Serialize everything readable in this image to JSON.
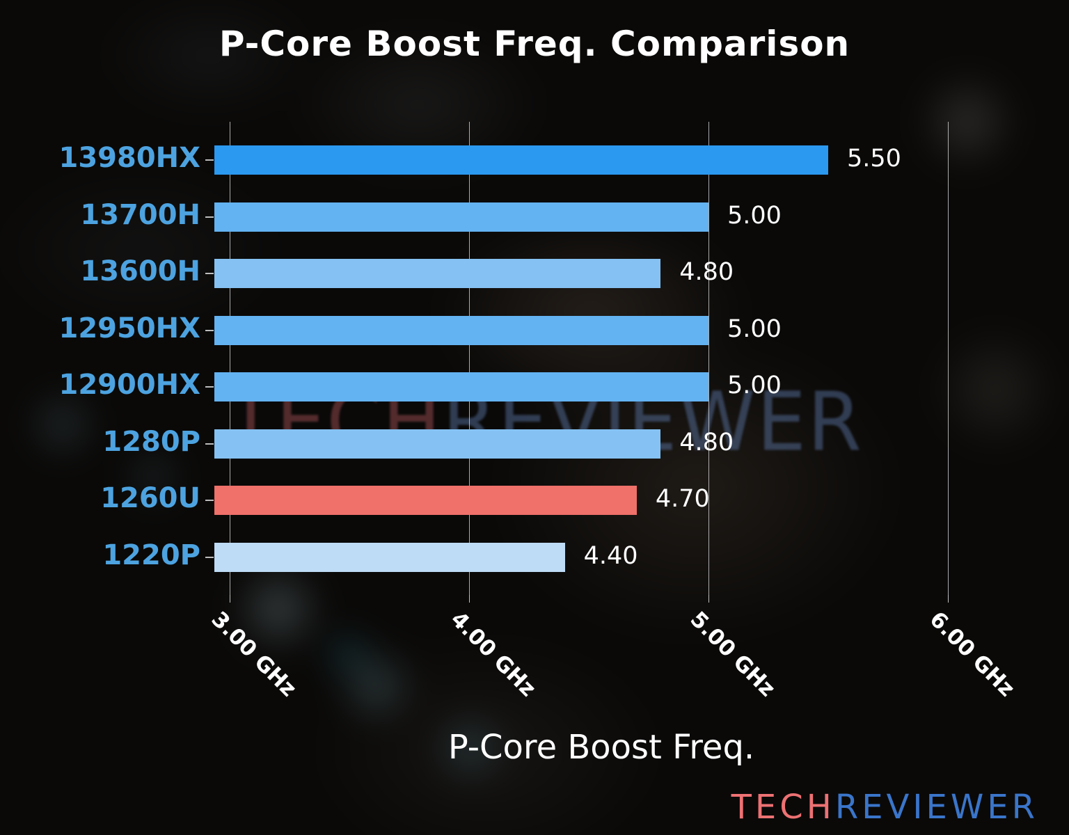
{
  "title": "P-Core Boost Freq. Comparison",
  "watermark": {
    "left": "TECH",
    "right": "REVIEWER"
  },
  "brand": {
    "left": "TECH",
    "right": "REVIEWER",
    "left_color": "#ed7173",
    "right_color": "#3a75ca"
  },
  "chart_data": {
    "type": "bar",
    "orientation": "horizontal",
    "title": "P-Core Boost Freq. Comparison",
    "xlabel": "P-Core Boost Freq.",
    "ylabel": "",
    "categories": [
      "13980HX",
      "13700H",
      "13600H",
      "12950HX",
      "12900HX",
      "1280P",
      "1260U",
      "1220P"
    ],
    "values": [
      5.5,
      5.0,
      4.8,
      5.0,
      5.0,
      4.8,
      4.7,
      4.4
    ],
    "value_labels": [
      "5.50",
      "5.00",
      "4.80",
      "5.00",
      "5.00",
      "4.80",
      "4.70",
      "4.40"
    ],
    "bar_colors": [
      "#2b99f0",
      "#63b3f2",
      "#85c2f3",
      "#63b3f2",
      "#63b3f2",
      "#85c2f3",
      "#f0706a",
      "#bedcf6"
    ],
    "highlight_index": 6,
    "category_label_color": "#4da3e0",
    "value_label_color": "#ffffff",
    "x_ticks": [
      {
        "value": 3.0,
        "label": "3.00 GHz"
      },
      {
        "value": 4.0,
        "label": "4.00 GHz"
      },
      {
        "value": 5.0,
        "label": "5.00 GHz"
      },
      {
        "value": 6.0,
        "label": "6.00 GHz"
      }
    ],
    "xlim": [
      2.94,
      6.51
    ],
    "grid": true,
    "gridline_color": "#e1e1e1",
    "legend": null,
    "background": "dark blurred CPU photo"
  }
}
